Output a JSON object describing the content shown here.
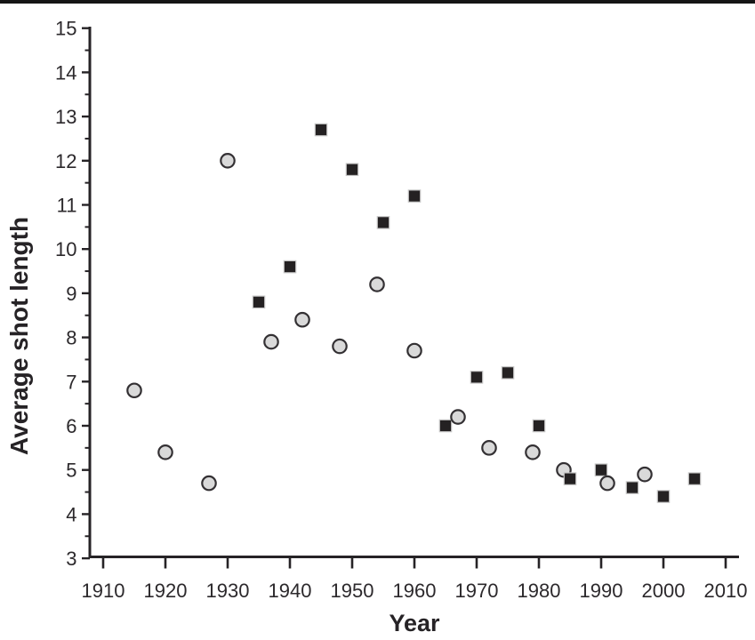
{
  "page": {
    "background": "#ffffff",
    "top_rule_color": "#151515"
  },
  "chart_data": {
    "type": "scatter",
    "title": "",
    "xlabel": "Year",
    "ylabel": "Average shot length",
    "xlim": [
      1910,
      2010
    ],
    "ylim": [
      3,
      15
    ],
    "grid": false,
    "legend": "none",
    "x_ticks": [
      1910,
      1920,
      1930,
      1940,
      1950,
      1960,
      1970,
      1980,
      1990,
      2000,
      2010
    ],
    "y_ticks": {
      "major": [
        3,
        4,
        5,
        6,
        7,
        8,
        9,
        10,
        11,
        12,
        13,
        14,
        15
      ],
      "minor": [
        3.5,
        4.5,
        5.5,
        6.5,
        7.5,
        8.5,
        9.5,
        10.5,
        11.5,
        12.5,
        13.5,
        14.5
      ]
    },
    "colors": {
      "axis": "#262326",
      "tick_label": "#2c292c",
      "circle_fill": "#d9d9d9",
      "circle_stroke": "#333033",
      "square_fill": "#242122",
      "square_outline": "#c6c6c6"
    },
    "series": [
      {
        "name": "gray-circles",
        "marker": "circle",
        "points": [
          [
            1915,
            6.8
          ],
          [
            1920,
            5.4
          ],
          [
            1927,
            4.7
          ],
          [
            1930,
            12.0
          ],
          [
            1937,
            7.9
          ],
          [
            1942,
            8.4
          ],
          [
            1948,
            7.8
          ],
          [
            1954,
            9.2
          ],
          [
            1960,
            7.7
          ],
          [
            1967,
            6.2
          ],
          [
            1972,
            5.5
          ],
          [
            1979,
            5.4
          ],
          [
            1984,
            5.0
          ],
          [
            1991,
            4.7
          ],
          [
            1997,
            4.9
          ]
        ]
      },
      {
        "name": "black-squares",
        "marker": "square",
        "points": [
          [
            1935,
            8.8
          ],
          [
            1940,
            9.6
          ],
          [
            1945,
            12.7
          ],
          [
            1950,
            11.8
          ],
          [
            1955,
            10.6
          ],
          [
            1960,
            11.2
          ],
          [
            1965,
            6.0
          ],
          [
            1970,
            7.1
          ],
          [
            1975,
            7.2
          ],
          [
            1980,
            6.0
          ],
          [
            1985,
            4.8
          ],
          [
            1990,
            5.0
          ],
          [
            1995,
            4.6
          ],
          [
            2000,
            4.4
          ],
          [
            2005,
            4.8
          ]
        ]
      }
    ]
  }
}
